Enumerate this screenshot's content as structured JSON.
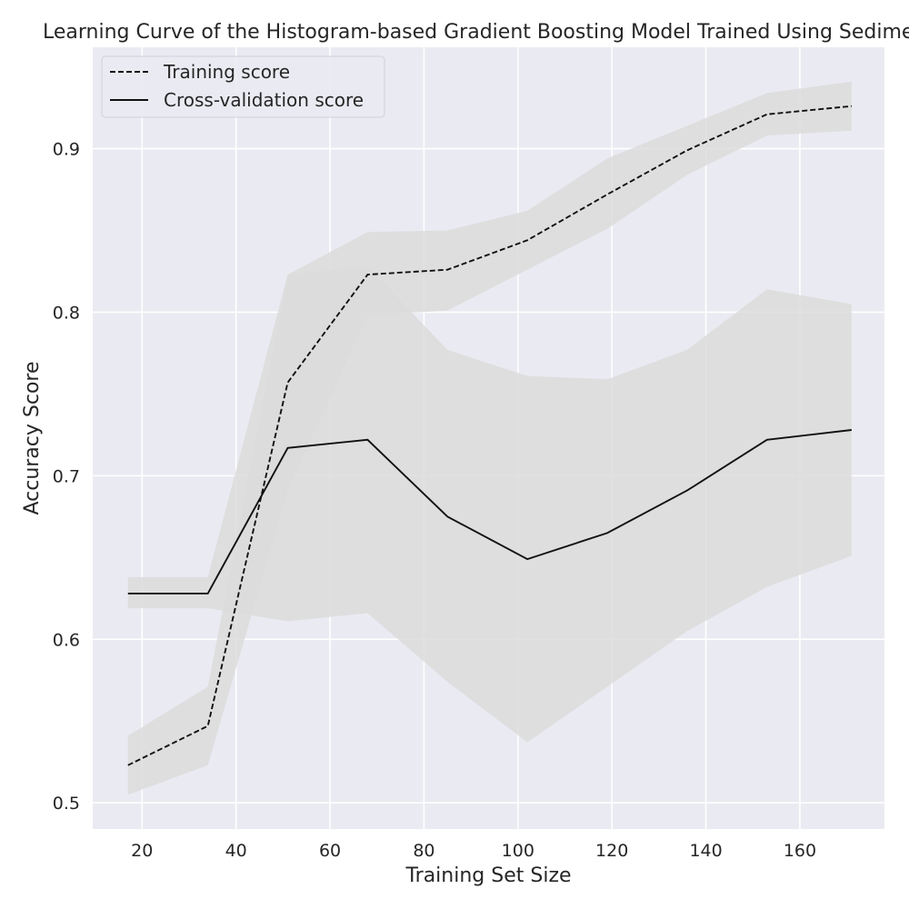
{
  "chart_data": {
    "type": "line",
    "title": "Learning Curve of the Histogram-based Gradient Boosting Model Trained Using Sediment",
    "xlabel": "Training Set Size",
    "ylabel": "Accuracy Score",
    "xlim": [
      9.5,
      178
    ],
    "ylim": [
      0.484,
      0.962
    ],
    "xticks": [
      20,
      40,
      60,
      80,
      100,
      120,
      140,
      160
    ],
    "yticks": [
      0.5,
      0.6,
      0.7,
      0.8,
      0.9
    ],
    "grid": true,
    "legend_position": "upper-left",
    "x": [
      17,
      34,
      51,
      68,
      85,
      102,
      119,
      136,
      153,
      171
    ],
    "series": [
      {
        "name": "Training score",
        "style": "dashed",
        "values": [
          0.523,
          0.547,
          0.757,
          0.823,
          0.826,
          0.844,
          0.872,
          0.899,
          0.921,
          0.926
        ],
        "band_upper": [
          0.541,
          0.571,
          0.823,
          0.849,
          0.85,
          0.862,
          0.894,
          0.914,
          0.934,
          0.941
        ],
        "band_lower": [
          0.505,
          0.523,
          0.691,
          0.798,
          0.801,
          0.826,
          0.851,
          0.884,
          0.908,
          0.911
        ]
      },
      {
        "name": "Cross-validation score",
        "style": "solid",
        "values": [
          0.628,
          0.628,
          0.717,
          0.722,
          0.675,
          0.649,
          0.665,
          0.691,
          0.722,
          0.728
        ],
        "band_upper": [
          0.638,
          0.638,
          0.823,
          0.828,
          0.777,
          0.761,
          0.759,
          0.777,
          0.814,
          0.805
        ],
        "band_lower": [
          0.619,
          0.619,
          0.611,
          0.616,
          0.574,
          0.537,
          0.571,
          0.605,
          0.632,
          0.651
        ]
      }
    ],
    "colors": {
      "plot_background": "#eaeaf2",
      "grid": "#ffffff",
      "band": "#dcdcdc",
      "line": "#111111"
    }
  }
}
